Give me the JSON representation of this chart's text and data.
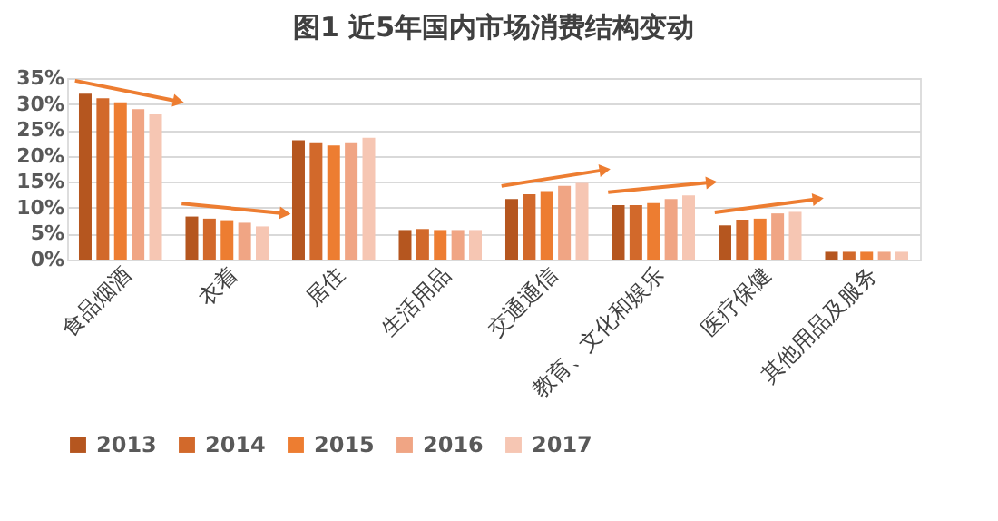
{
  "chart_data": {
    "type": "bar",
    "title": "图1 近5年国内市场消费结构变动",
    "categories": [
      "食品烟酒",
      "衣着",
      "居住",
      "生活用品",
      "交通通信",
      "教育、文化和娱乐",
      "医疗保健",
      "其他用品及服务"
    ],
    "series": [
      {
        "name": "2013",
        "color": "#b5561f",
        "values": [
          32.0,
          8.3,
          23.0,
          5.7,
          11.7,
          10.5,
          6.6,
          1.5
        ]
      },
      {
        "name": "2014",
        "color": "#d2692b",
        "values": [
          31.1,
          7.9,
          22.6,
          5.9,
          12.6,
          10.5,
          7.7,
          1.5
        ]
      },
      {
        "name": "2015",
        "color": "#ed7d31",
        "values": [
          30.3,
          7.6,
          22.0,
          5.7,
          13.2,
          10.9,
          7.9,
          1.5
        ]
      },
      {
        "name": "2016",
        "color": "#f0a584",
        "values": [
          29.0,
          7.1,
          22.6,
          5.7,
          14.2,
          11.7,
          8.9,
          1.5
        ]
      },
      {
        "name": "2017",
        "color": "#f6c6b3",
        "values": [
          28.0,
          6.4,
          23.5,
          5.7,
          14.8,
          12.4,
          9.2,
          1.5
        ]
      }
    ],
    "ylim": [
      0,
      35
    ],
    "yticks": [
      {
        "value": 0,
        "label": "0%"
      },
      {
        "value": 5,
        "label": "5%"
      },
      {
        "value": 10,
        "label": "10%"
      },
      {
        "value": 15,
        "label": "15%"
      },
      {
        "value": 20,
        "label": "20%"
      },
      {
        "value": 25,
        "label": "25%"
      },
      {
        "value": 30,
        "label": "30%"
      },
      {
        "value": 35,
        "label": "35%"
      }
    ],
    "grid": "y",
    "legend": "bottom"
  }
}
